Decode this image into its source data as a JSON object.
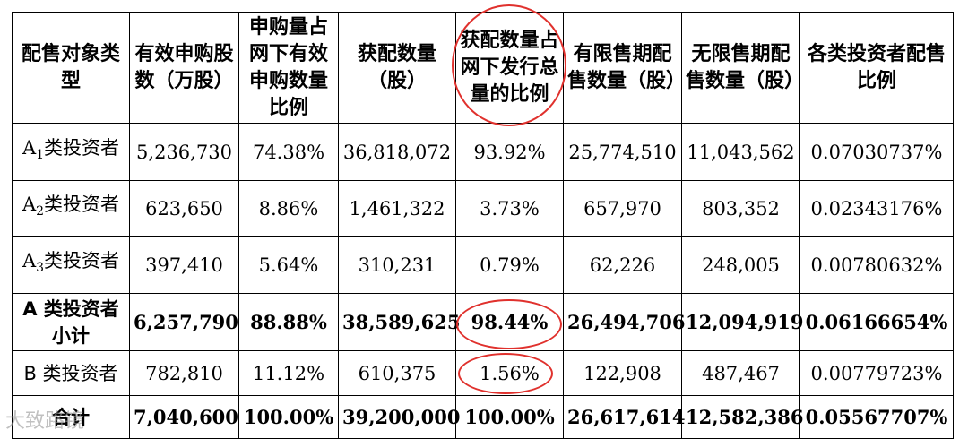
{
  "headers": [
    "配售对象类型",
    "有效申购股数（万股）",
    "申购量占网下有效申购数量比例",
    "获配数量（股）",
    "获配数量占网下发行总量的比例",
    "有限售期配售数量（股）",
    "无限售期配售数量（股）",
    "各类投资者配售比例"
  ],
  "rows": [
    {
      "category_prefix": "A",
      "category_sub": "1",
      "category_suffix": "类投资者",
      "subscribed": "5,236,730",
      "sub_ratio": "74.38%",
      "allocated": "36,818,072",
      "alloc_ratio": "93.92%",
      "restricted": "25,774,510",
      "unrestricted": "11,043,562",
      "placement_ratio": "0.07030737%"
    },
    {
      "category_prefix": "A",
      "category_sub": "2",
      "category_suffix": "类投资者",
      "subscribed": "623,650",
      "sub_ratio": "8.86%",
      "allocated": "1,461,322",
      "alloc_ratio": "3.73%",
      "restricted": "657,970",
      "unrestricted": "803,352",
      "placement_ratio": "0.02343176%"
    },
    {
      "category_prefix": "A",
      "category_sub": "3",
      "category_suffix": "类投资者",
      "subscribed": "397,410",
      "sub_ratio": "5.64%",
      "allocated": "310,231",
      "alloc_ratio": "0.79%",
      "restricted": "62,226",
      "unrestricted": "248,005",
      "placement_ratio": "0.00780632%"
    },
    {
      "category": "A 类投资者小计",
      "subscribed": "6,257,790",
      "sub_ratio": "88.88%",
      "allocated": "38,589,625",
      "alloc_ratio": "98.44%",
      "restricted": "26,494,706",
      "unrestricted": "12,094,919",
      "placement_ratio": "0.06166654%"
    },
    {
      "category": "B 类投资者",
      "subscribed": "782,810",
      "sub_ratio": "11.12%",
      "allocated": "610,375",
      "alloc_ratio": "1.56%",
      "restricted": "122,908",
      "unrestricted": "487,467",
      "placement_ratio": "0.00779723%"
    },
    {
      "category": "合计",
      "subscribed": "7,040,600",
      "sub_ratio": "100.00%",
      "allocated": "39,200,000",
      "alloc_ratio": "100.00%",
      "restricted": "26,617,614",
      "unrestricted": "12,582,386",
      "placement_ratio": "0.05567707%"
    }
  ],
  "highlight_color": "#e0312d",
  "watermark": "大致路镜"
}
